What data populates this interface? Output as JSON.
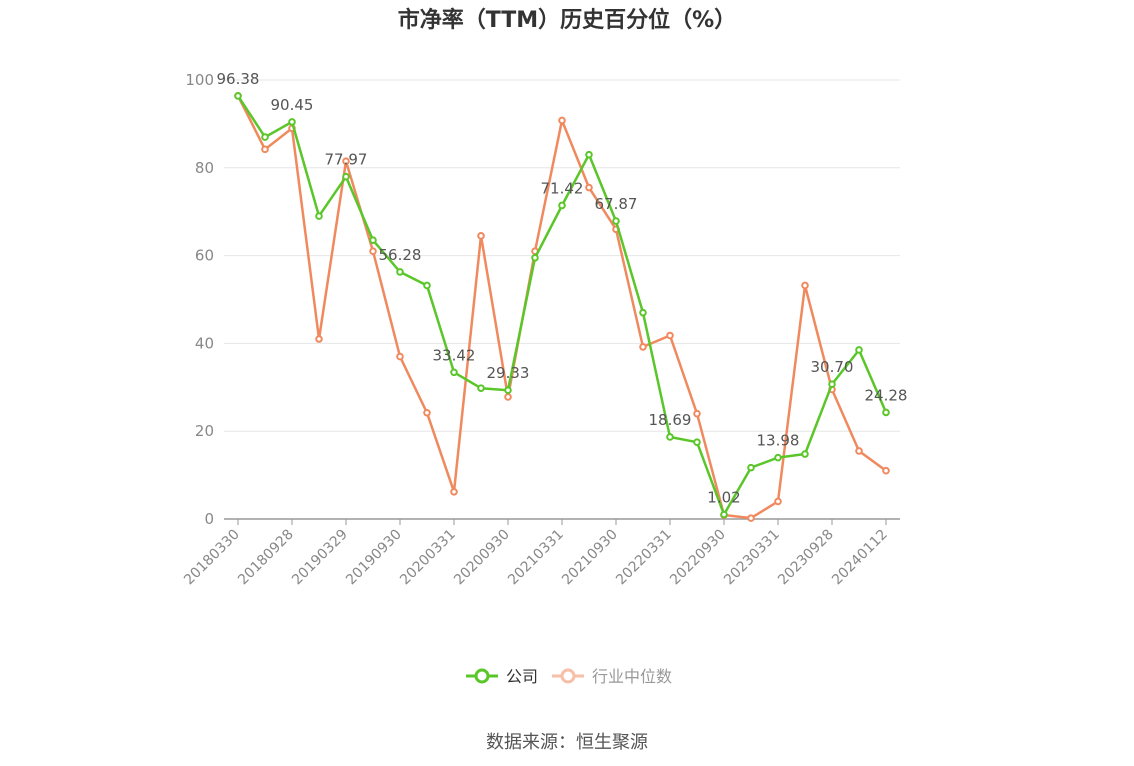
{
  "chart_data": {
    "type": "line",
    "title": "市净率（TTM）历史百分位（%）",
    "source": "数据来源：恒生聚源",
    "ylim": [
      0,
      100
    ],
    "y_ticks": [
      "0",
      "20",
      "40",
      "60",
      "80",
      "100"
    ],
    "x_tick_labels": [
      "20180330",
      "20180928",
      "20190329",
      "20190930",
      "20200331",
      "20200930",
      "20210331",
      "20210930",
      "20220331",
      "20220930",
      "20230331",
      "20230928",
      "20240112"
    ],
    "legend_position": "bottom",
    "grid": true,
    "series": [
      {
        "name": "公司",
        "color": "#5ac629",
        "values": [
          96.38,
          87,
          90.45,
          69,
          77.97,
          63.5,
          56.28,
          53.2,
          33.42,
          29.8,
          29.33,
          59.5,
          71.42,
          83,
          67.87,
          47,
          18.69,
          17.5,
          1.02,
          11.7,
          13.98,
          14.8,
          30.7,
          38.5,
          24.28
        ],
        "labels": [
          "96.38",
          "",
          "90.45",
          "",
          "77.97",
          "",
          "56.28",
          "",
          "33.42",
          "",
          "29.33",
          "",
          "71.42",
          "",
          "67.87",
          "",
          "18.69",
          "",
          "1.02",
          "",
          "13.98",
          "",
          "30.70",
          "",
          "24.28"
        ]
      },
      {
        "name": "行业中位数",
        "color": "#f0895e",
        "values": [
          96.4,
          84.2,
          89,
          41,
          81.5,
          61,
          37,
          24.2,
          6.2,
          64.5,
          27.8,
          61,
          90.8,
          75.5,
          66,
          39.2,
          41.8,
          24,
          0.9,
          0.2,
          4,
          53.2,
          29.5,
          15.5,
          11
        ]
      }
    ]
  }
}
